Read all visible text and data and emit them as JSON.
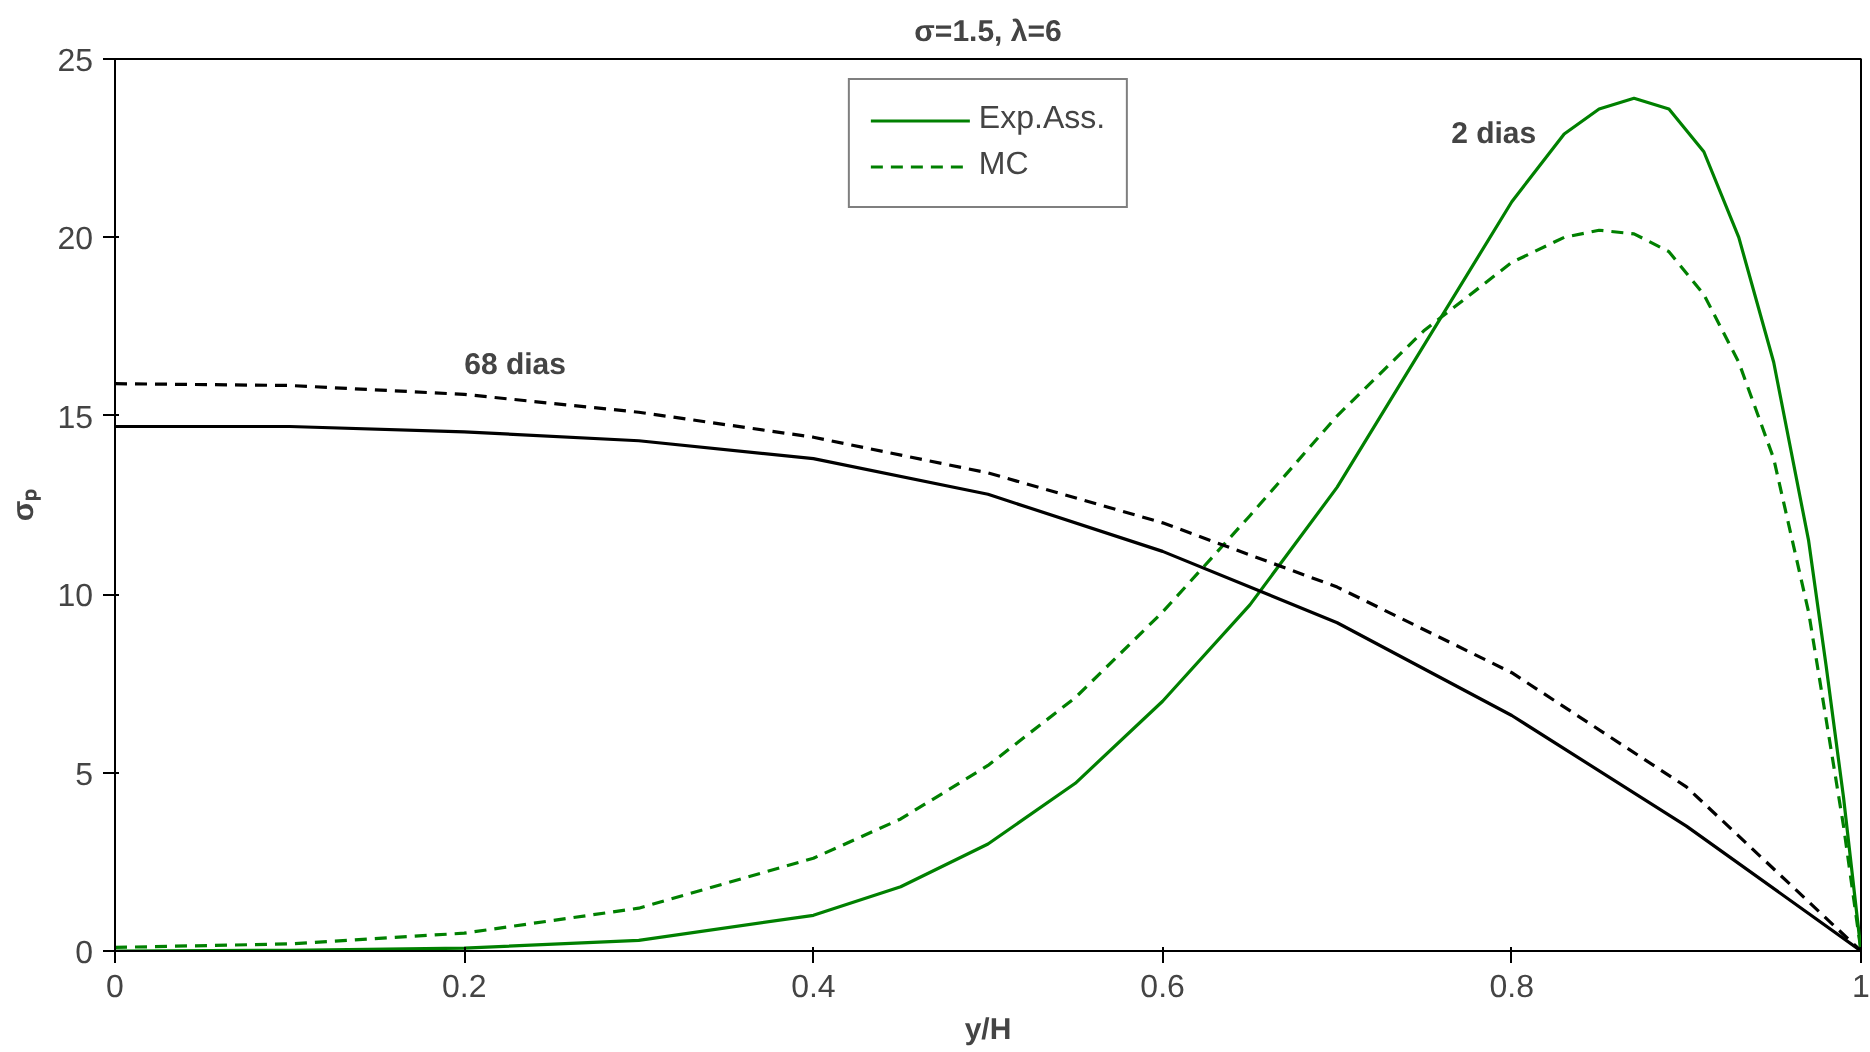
{
  "chart_data": {
    "type": "line",
    "title": "σ=1.5, λ=6",
    "xlabel": "y/H",
    "ylabel": "σₚ",
    "xlim": [
      0,
      1
    ],
    "ylim": [
      0,
      25
    ],
    "xticks": [
      0,
      0.2,
      0.4,
      0.6,
      0.8,
      1
    ],
    "yticks": [
      0,
      5,
      10,
      15,
      20,
      25
    ],
    "grid": false,
    "legend": "top",
    "marker": "none",
    "series": [
      {
        "name": "Exp.Ass.",
        "color": "#008000",
        "line_style": "solid",
        "x": [
          0,
          0.1,
          0.2,
          0.3,
          0.4,
          0.45,
          0.5,
          0.55,
          0.6,
          0.65,
          0.7,
          0.75,
          0.8,
          0.83,
          0.85,
          0.87,
          0.89,
          0.91,
          0.93,
          0.95,
          0.97,
          0.98,
          0.99,
          1
        ],
        "values": [
          0,
          0.02,
          0.08,
          0.3,
          1.0,
          1.8,
          3.0,
          4.7,
          7.0,
          9.7,
          13.0,
          17.0,
          21.0,
          22.9,
          23.6,
          23.9,
          23.6,
          22.4,
          20.0,
          16.5,
          11.5,
          8.0,
          4.3,
          0
        ]
      },
      {
        "name": "MC",
        "color": "#008000",
        "line_style": "dashed",
        "x": [
          0,
          0.1,
          0.2,
          0.3,
          0.4,
          0.45,
          0.5,
          0.55,
          0.6,
          0.65,
          0.7,
          0.75,
          0.8,
          0.83,
          0.85,
          0.87,
          0.89,
          0.91,
          0.93,
          0.95,
          0.97,
          0.98,
          0.99,
          1
        ],
        "values": [
          0.1,
          0.2,
          0.5,
          1.2,
          2.6,
          3.7,
          5.2,
          7.1,
          9.5,
          12.2,
          15.0,
          17.4,
          19.3,
          20.0,
          20.2,
          20.1,
          19.6,
          18.4,
          16.5,
          13.8,
          9.5,
          6.5,
          3.5,
          0
        ]
      },
      {
        "color": "#000000",
        "line_style": "solid",
        "x": [
          0,
          0.1,
          0.2,
          0.3,
          0.4,
          0.5,
          0.6,
          0.7,
          0.8,
          0.9,
          1
        ],
        "values": [
          14.7,
          14.7,
          14.55,
          14.3,
          13.8,
          12.8,
          11.2,
          9.2,
          6.6,
          3.5,
          0
        ]
      },
      {
        "color": "#000000",
        "line_style": "dashed",
        "x": [
          0,
          0.1,
          0.2,
          0.3,
          0.4,
          0.5,
          0.6,
          0.7,
          0.8,
          0.9,
          1
        ],
        "values": [
          15.9,
          15.85,
          15.6,
          15.1,
          14.4,
          13.4,
          12.0,
          10.2,
          7.8,
          4.6,
          0
        ]
      }
    ],
    "annotations": [
      {
        "text": "2 dias",
        "x": 0.83,
        "y": 22.9
      },
      {
        "text": "68 dias",
        "x": 0.2,
        "y": 15.6
      }
    ]
  }
}
